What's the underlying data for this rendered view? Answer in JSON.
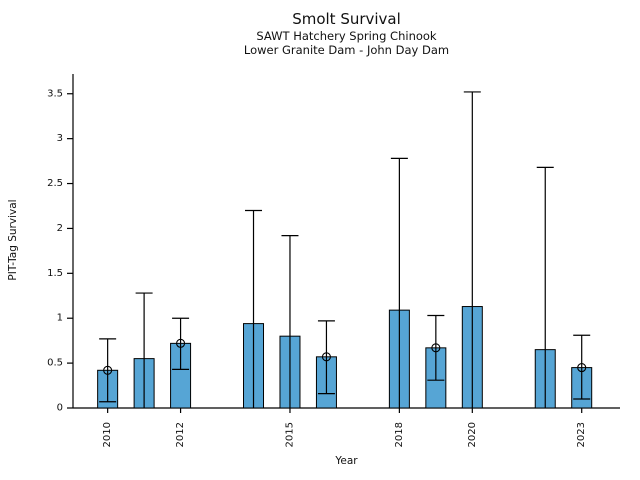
{
  "chart_data": {
    "type": "bar",
    "title": "Smolt Survival",
    "subtitle1": "SAWT Hatchery Spring Chinook",
    "subtitle2": "Lower Granite Dam - John Day Dam",
    "xlabel": "Year",
    "ylabel": "PIT-Tag Survival",
    "xlim": [
      2009.05,
      2024.05
    ],
    "ylim": [
      0,
      3.72
    ],
    "yticks": [
      0,
      0.5,
      1,
      1.5,
      2,
      2.5,
      3,
      3.5
    ],
    "ytick_labels": [
      "0",
      "0.5",
      "1",
      "1.5",
      "2",
      "2.5",
      "3",
      "3.5"
    ],
    "xticks": [
      2010,
      2012,
      2015,
      2018,
      2020,
      2023
    ],
    "xtick_labels": [
      "2010",
      "2012",
      "2015",
      "2018",
      "2020",
      "2023"
    ],
    "bar_color": "#56A5D5",
    "edge_color": "#000000",
    "grid": false,
    "legend": "none",
    "series": [
      {
        "year": 2010,
        "value": 0.42,
        "err_lo": 0.07,
        "err_hi": 0.77,
        "marker": true
      },
      {
        "year": 2011,
        "value": 0.55,
        "err_lo": 0.0,
        "err_hi": 1.28,
        "marker": false
      },
      {
        "year": 2012,
        "value": 0.72,
        "err_lo": 0.43,
        "err_hi": 1.0,
        "marker": true
      },
      {
        "year": 2014,
        "value": 0.94,
        "err_lo": 0.0,
        "err_hi": 2.2,
        "marker": false
      },
      {
        "year": 2015,
        "value": 0.8,
        "err_lo": 0.0,
        "err_hi": 1.92,
        "marker": false
      },
      {
        "year": 2016,
        "value": 0.57,
        "err_lo": 0.16,
        "err_hi": 0.97,
        "marker": true
      },
      {
        "year": 2018,
        "value": 1.09,
        "err_lo": 0.0,
        "err_hi": 2.78,
        "marker": false
      },
      {
        "year": 2019,
        "value": 0.67,
        "err_lo": 0.31,
        "err_hi": 1.03,
        "marker": true
      },
      {
        "year": 2020,
        "value": 1.13,
        "err_lo": 0.0,
        "err_hi": 3.52,
        "marker": false
      },
      {
        "year": 2022,
        "value": 0.65,
        "err_lo": 0.0,
        "err_hi": 2.68,
        "marker": false
      },
      {
        "year": 2023,
        "value": 0.45,
        "err_lo": 0.1,
        "err_hi": 0.81,
        "marker": true
      }
    ]
  }
}
